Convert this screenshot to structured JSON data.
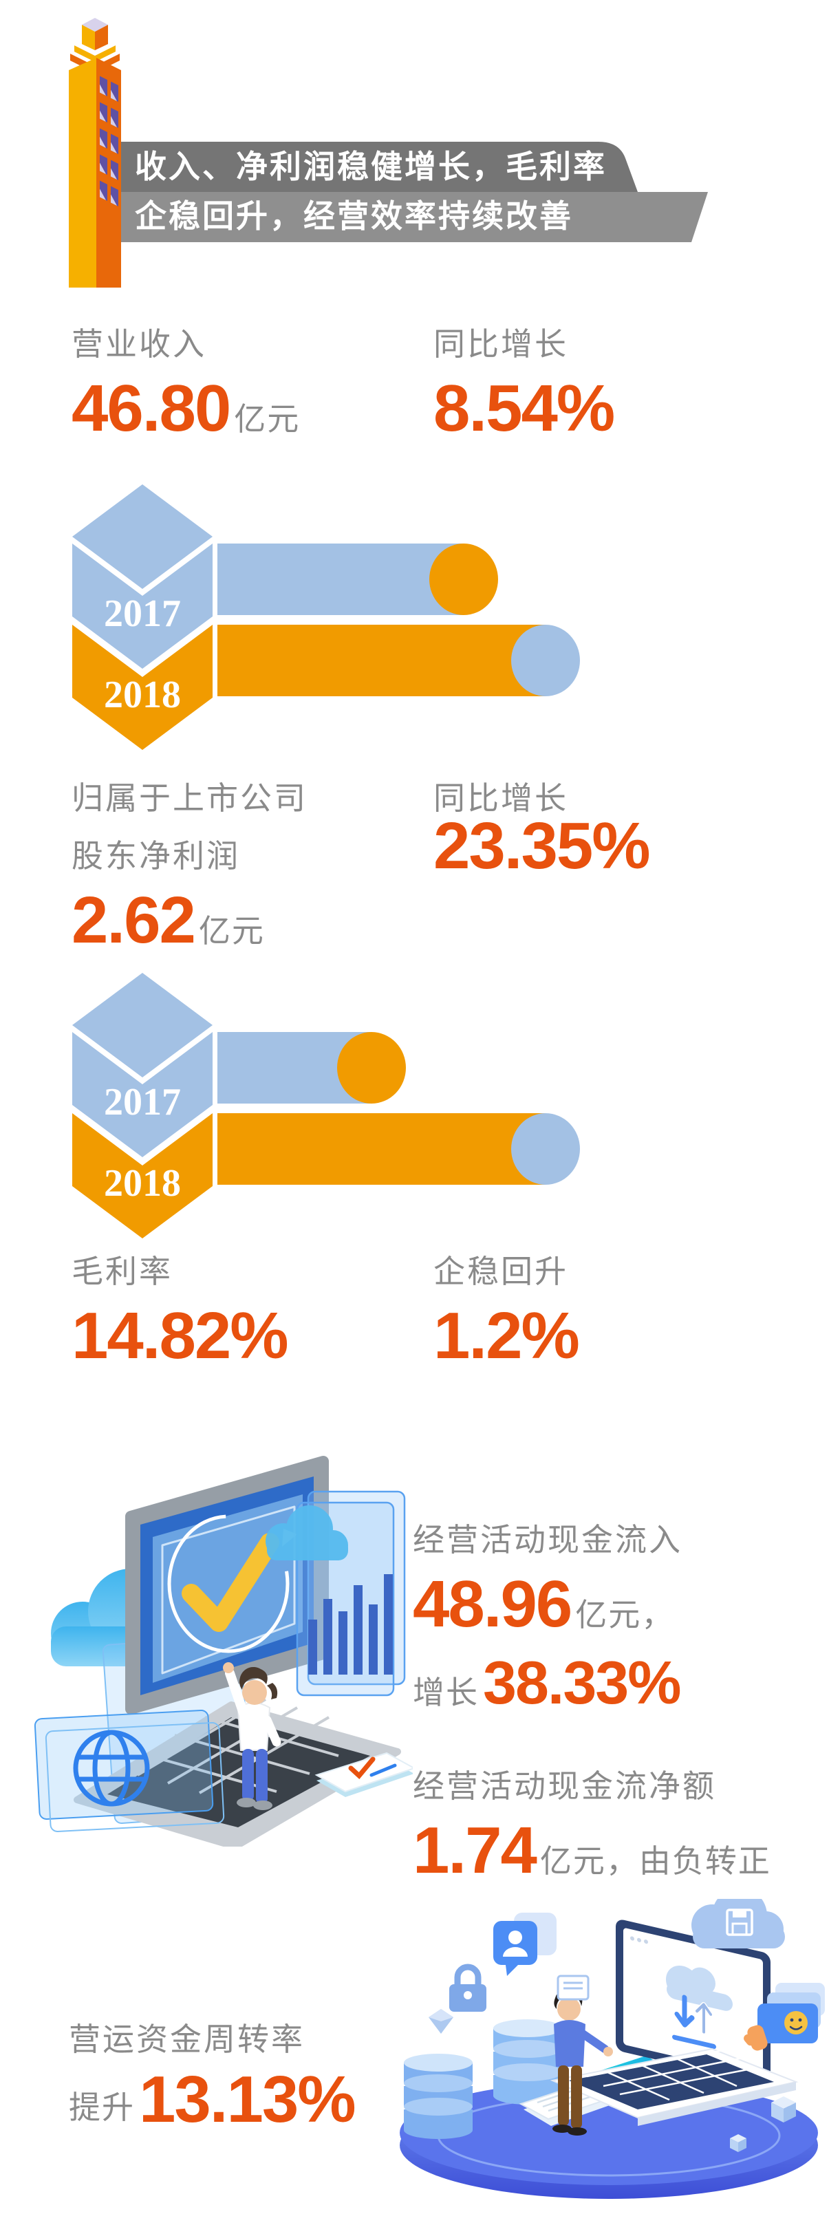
{
  "colors": {
    "accent_orange": "#E8510E",
    "label_gray": "#8A8A8A",
    "banner_dark_gray": "#757575",
    "banner_light_gray": "#8F8F8F",
    "chart_blue": "#A3C1E4",
    "chart_orange": "#F19B00",
    "building_yellow": "#F6B000",
    "building_orange": "#E8680A",
    "building_window_purple": "#5F51A4"
  },
  "banner": {
    "line1": "收入、净利润稳健增长，毛利率",
    "line2": "企稳回升，经营效率持续改善"
  },
  "revenue": {
    "label": "营业收入",
    "value": "46.80",
    "unit": "亿元",
    "growth_label": "同比增长",
    "growth_value": "8.54%"
  },
  "profit": {
    "label_line1": "归属于上市公司",
    "label_line2": "股东净利润",
    "value": "2.62",
    "unit": "亿元",
    "growth_label": "同比增长",
    "growth_value": "23.35%"
  },
  "margin": {
    "label": "毛利率",
    "value": "14.82%",
    "stab_label": "企稳回升",
    "stab_value": "1.2%"
  },
  "cashflow": {
    "inflow_label": "经营活动现金流入",
    "inflow_value": "48.96",
    "inflow_unit": "亿元，",
    "growth_prefix": "增长",
    "growth_value": "38.33%",
    "net_label": "经营活动现金流净额",
    "net_value": "1.74",
    "net_suffix": "亿元，由负转正"
  },
  "turnover": {
    "label": "营运资金周转率",
    "prefix": "提升",
    "value": "13.13%"
  },
  "chart_data": [
    {
      "type": "bar",
      "title": "营业收入 同比 (2017 vs 2018)",
      "categories": [
        "2017",
        "2018"
      ],
      "bar_end_pct": [
        75,
        100
      ],
      "bar_colors": [
        "#A3C1E4",
        "#F19B00"
      ],
      "cap_colors": [
        "#F19B00",
        "#A3C1E4"
      ],
      "metric_value": "46.80亿元",
      "metric_growth": "8.54%",
      "legend_position": "left-chevron-column",
      "grid": false
    },
    {
      "type": "bar",
      "title": "归属于上市公司股东净利润 同比 (2017 vs 2018)",
      "categories": [
        "2017",
        "2018"
      ],
      "bar_end_pct": [
        47,
        100
      ],
      "bar_colors": [
        "#A3C1E4",
        "#F19B00"
      ],
      "cap_colors": [
        "#F19B00",
        "#A3C1E4"
      ],
      "metric_value": "2.62亿元",
      "metric_growth": "23.35%",
      "legend_position": "left-chevron-column",
      "grid": false
    }
  ]
}
